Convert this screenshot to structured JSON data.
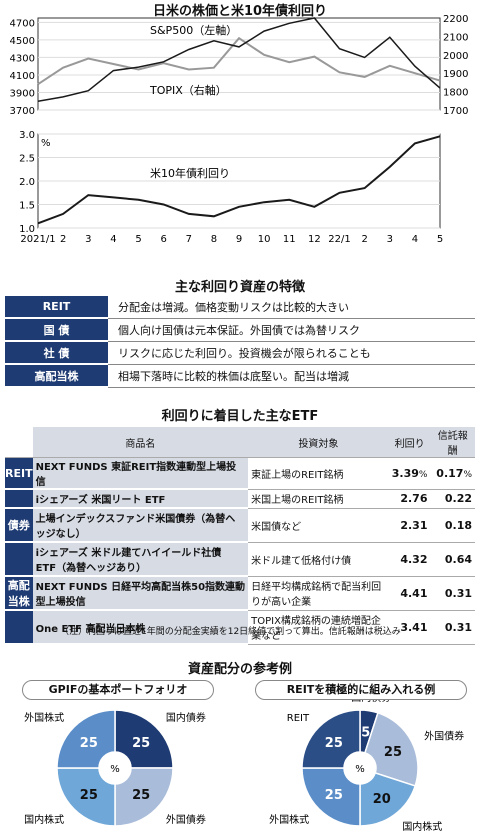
{
  "top_chart": {
    "title": "日米の株価と米10年債利回り",
    "sp_label": "S&P500（左軸）",
    "topix_label": "TOPIX（右軸）",
    "rate_label": "米10年債利回り",
    "left_ticks": [
      "4700",
      "4500",
      "4300",
      "4100",
      "3900",
      "3700"
    ],
    "right_ticks": [
      "2200",
      "2100",
      "2000",
      "1900",
      "1800",
      "1700"
    ],
    "rate_ticks": [
      "3.0",
      "2.5",
      "2.0",
      "1.5",
      "1.0"
    ],
    "rate_unit": "%",
    "x_ticks": [
      "2021/1",
      "2",
      "3",
      "4",
      "5",
      "6",
      "7",
      "8",
      "9",
      "10",
      "11",
      "12",
      "22/1",
      "2",
      "3",
      "4",
      "5"
    ],
    "colors": {
      "sp": "#1a1a1a",
      "topix": "#999999",
      "rate": "#1a1a1a"
    }
  },
  "chart_data": [
    {
      "type": "line",
      "title": "日米の株価と米10年債利回り",
      "x": [
        "2021/1",
        "2",
        "3",
        "4",
        "5",
        "6",
        "7",
        "8",
        "9",
        "10",
        "11",
        "12",
        "22/1",
        "2",
        "3",
        "4",
        "5"
      ],
      "series": [
        {
          "name": "S&P500（左軸）",
          "axis": "left",
          "values": [
            3800,
            3850,
            3920,
            4150,
            4190,
            4250,
            4390,
            4490,
            4420,
            4600,
            4690,
            4750,
            4400,
            4300,
            4530,
            4200,
            3950
          ]
        },
        {
          "name": "TOPIX（右軸）",
          "axis": "right",
          "values": [
            1840,
            1930,
            1980,
            1950,
            1920,
            1955,
            1920,
            1930,
            2090,
            2000,
            1960,
            1990,
            1905,
            1880,
            1940,
            1900,
            1860
          ]
        },
        {
          "name": "米10年債利回り",
          "axis": "rate",
          "values": [
            1.1,
            1.3,
            1.7,
            1.65,
            1.6,
            1.5,
            1.3,
            1.25,
            1.45,
            1.55,
            1.6,
            1.45,
            1.75,
            1.85,
            2.3,
            2.8,
            2.95
          ]
        }
      ],
      "ylim_left": [
        3700,
        4750
      ],
      "ylim_right": [
        1700,
        2200
      ],
      "ylim_rate": [
        1.0,
        3.0
      ]
    },
    {
      "type": "pie",
      "title": "GPIFの基本ポートフォリオ",
      "center_label": "%",
      "slices": [
        {
          "label": "国内債券",
          "value": 25
        },
        {
          "label": "外国債券",
          "value": 25
        },
        {
          "label": "国内株式",
          "value": 25
        },
        {
          "label": "外国株式",
          "value": 25
        }
      ]
    },
    {
      "type": "pie",
      "title": "REITを積極的に組み入れる例",
      "center_label": "%",
      "slices": [
        {
          "label": "国内債券",
          "value": 5
        },
        {
          "label": "外国債券",
          "value": 25
        },
        {
          "label": "国内株式",
          "value": 20
        },
        {
          "label": "外国株式",
          "value": 25
        },
        {
          "label": "REIT",
          "value": 25
        }
      ]
    }
  ],
  "features": {
    "title": "主な利回り資産の特徴",
    "rows": [
      {
        "k": "REIT",
        "v": "分配金は増減。価格変動リスクは比較的大きい"
      },
      {
        "k": "国 債",
        "v": "個人向け国債は元本保証。外国債では為替リスク"
      },
      {
        "k": "社 債",
        "v": "リスクに応じた利回り。投資機会が限られることも"
      },
      {
        "k": "高配当株",
        "v": "相場下落時に比較的株価は底堅い。配当は増減"
      }
    ]
  },
  "etf": {
    "title": "利回りに着目した主なETF",
    "headers": [
      "商品名",
      "投資対象",
      "利回り",
      "信託報酬"
    ],
    "rows": [
      {
        "cat": "REIT",
        "name": "NEXT FUNDS 東証REIT指数連動型上場投信",
        "target": "東証上場のREIT銘柄",
        "yield": "3.39",
        "yield_unit": "%",
        "fee": "0.17",
        "fee_unit": "%"
      },
      {
        "name": "iシェアーズ 米国リート ETF",
        "target": "米国上場のREIT銘柄",
        "yield": "2.76",
        "fee": "0.22"
      },
      {
        "cat": "債券",
        "name": "上場インデックスファンド米国債券（為替ヘッジなし）",
        "target": "米国債など",
        "yield": "2.31",
        "fee": "0.18"
      },
      {
        "name": "iシェアーズ 米ドル建てハイイールド社債 ETF（為替ヘッジあり）",
        "target": "米ドル建て低格付け債",
        "yield": "4.32",
        "fee": "0.64"
      },
      {
        "cat": "高配当株",
        "name": "NEXT FUNDS 日経平均高配当株50指数連動型上場投信",
        "target": "日経平均構成銘柄で配当利回りが高い企業",
        "yield": "4.41",
        "fee": "0.31"
      },
      {
        "name": "One ETF 高配当日本株",
        "target": "TOPIX構成銘柄の連続増配企業など",
        "yield": "3.41",
        "fee": "0.31"
      }
    ],
    "note": "（注）利回りは直近1年間の分配金実績を12日終値で割って算出。信託報酬は税込み"
  },
  "alloc": {
    "title": "資産配分の参考例",
    "pie1_title": "GPIFの基本ポートフォリオ",
    "pie2_title": "REITを積極的に組み入れる例",
    "colors": [
      "#1f3b73",
      "#a9bcd9",
      "#5b8ec9",
      "#6fa7d8",
      "#2c4e86"
    ]
  }
}
